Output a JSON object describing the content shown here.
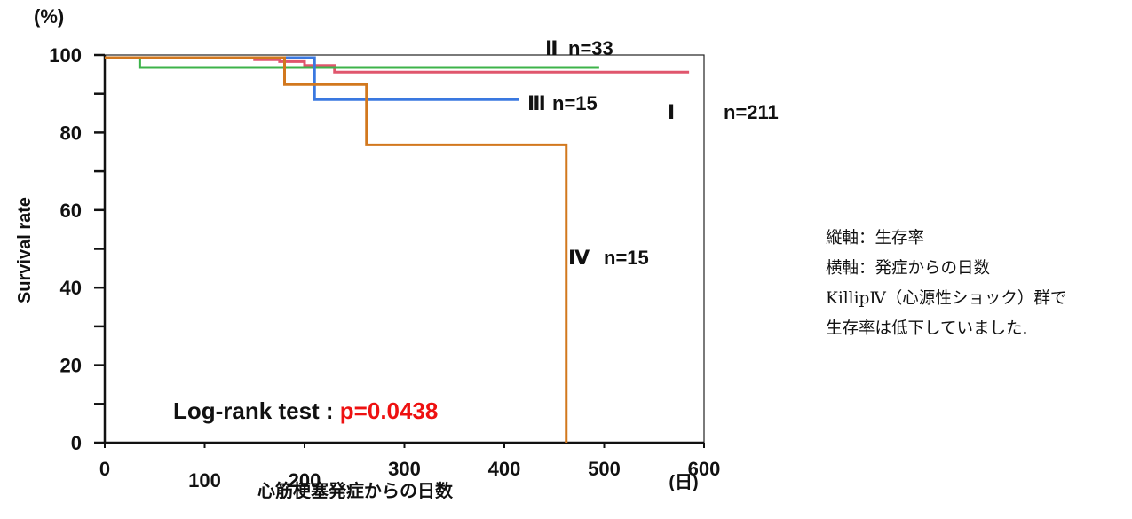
{
  "chart_data": {
    "type": "line",
    "step": true,
    "y_unit": "(%)",
    "ylabel": "Survival rate",
    "xlabel": "心筋梗塞発症からの日数",
    "x_unit": "(日)",
    "xlim": [
      0,
      600
    ],
    "ylim": [
      0,
      100
    ],
    "x_ticks": [
      0,
      100,
      200,
      300,
      400,
      500,
      600
    ],
    "y_ticks": [
      0,
      20,
      40,
      60,
      80,
      100
    ],
    "grid": false,
    "series": [
      {
        "name": "Ⅰ",
        "n_label": "n=211",
        "color": "#e0566d",
        "points": [
          [
            0,
            99.3
          ],
          [
            150,
            98.8
          ],
          [
            175,
            98.3
          ],
          [
            200,
            97.3
          ],
          [
            230,
            95.6
          ],
          [
            585,
            95.6
          ]
        ]
      },
      {
        "name": "Ⅱ",
        "n_label": "n=33",
        "color": "#3db34a",
        "points": [
          [
            0,
            99.3
          ],
          [
            35,
            96.8
          ],
          [
            495,
            96.8
          ]
        ]
      },
      {
        "name": "Ⅲ",
        "n_label": "n=15",
        "color": "#3a78e0",
        "points": [
          [
            0,
            99.3
          ],
          [
            210,
            88.5
          ],
          [
            415,
            88.5
          ]
        ]
      },
      {
        "name": "Ⅳ",
        "n_label": "n=15",
        "color": "#d2781e",
        "points": [
          [
            0,
            99.3
          ],
          [
            180,
            92.4
          ],
          [
            262,
            76.8
          ],
          [
            462,
            0
          ]
        ]
      }
    ],
    "annotation": {
      "label": "Log-rank test : ",
      "p_value": "p=0.0438",
      "p_color": "#ee1111"
    }
  },
  "notes": [
    "縦軸：生存率",
    "横軸：発症からの日数",
    "KillipⅣ（心源性ショック）群で",
    "生存率は低下していました."
  ]
}
